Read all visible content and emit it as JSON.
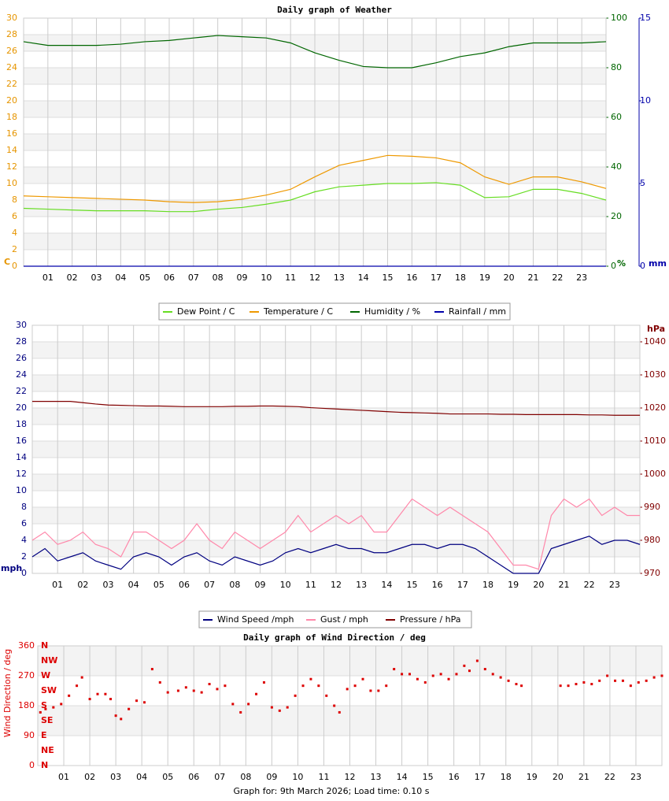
{
  "chart_data": [
    {
      "type": "line",
      "title": "Daily graph of Weather",
      "x": [
        0,
        1,
        2,
        3,
        4,
        5,
        6,
        7,
        8,
        9,
        10,
        11,
        12,
        13,
        14,
        15,
        16,
        17,
        18,
        19,
        20,
        21,
        22,
        23,
        24
      ],
      "xlim": [
        0,
        24
      ],
      "xticks": [
        {
          "value": 1,
          "label": "01"
        },
        {
          "value": 2,
          "label": "02"
        },
        {
          "value": 3,
          "label": "03"
        },
        {
          "value": 4,
          "label": "04"
        },
        {
          "value": 5,
          "label": "05"
        },
        {
          "value": 6,
          "label": "06"
        },
        {
          "value": 7,
          "label": "07"
        },
        {
          "value": 8,
          "label": "08"
        },
        {
          "value": 9,
          "label": "09"
        },
        {
          "value": 10,
          "label": "10"
        },
        {
          "value": 11,
          "label": "11"
        },
        {
          "value": 12,
          "label": "12"
        },
        {
          "value": 13,
          "label": "13"
        },
        {
          "value": 14,
          "label": "14"
        },
        {
          "value": 15,
          "label": "15"
        },
        {
          "value": 16,
          "label": "16"
        },
        {
          "value": 17,
          "label": "17"
        },
        {
          "value": 18,
          "label": "18"
        },
        {
          "value": 19,
          "label": "19"
        },
        {
          "value": 20,
          "label": "20"
        },
        {
          "value": 21,
          "label": "21"
        },
        {
          "value": 22,
          "label": "22"
        },
        {
          "value": 23,
          "label": "23"
        }
      ],
      "y_label": "C",
      "ylim": [
        0,
        30
      ],
      "yticks": [
        0,
        2,
        4,
        6,
        8,
        10,
        12,
        14,
        16,
        18,
        20,
        22,
        24,
        26,
        28,
        30
      ],
      "y2_label": "%",
      "y2lim": [
        0,
        100
      ],
      "y2ticks": [
        0,
        20,
        40,
        60,
        80,
        100
      ],
      "y3_label": "mm",
      "y3lim": [
        0,
        15
      ],
      "y3ticks": [
        0,
        5,
        10,
        15
      ],
      "grid": true,
      "series": [
        {
          "name": "Dew Point / C",
          "color": "#66dd22",
          "values": [
            7.0,
            6.9,
            6.8,
            6.7,
            6.7,
            6.7,
            6.6,
            6.6,
            6.9,
            7.1,
            7.5,
            8.0,
            9.0,
            9.6,
            9.8,
            10.0,
            10.0,
            10.1,
            9.8,
            8.3,
            8.4,
            9.3,
            9.3,
            8.8,
            8.0
          ]
        },
        {
          "name": "Temperature / C",
          "color": "#ee9900",
          "values": [
            8.5,
            8.4,
            8.3,
            8.2,
            8.1,
            8.0,
            7.8,
            7.7,
            7.8,
            8.1,
            8.6,
            9.3,
            10.8,
            12.2,
            12.8,
            13.4,
            13.3,
            13.1,
            12.5,
            10.8,
            9.9,
            10.8,
            10.8,
            10.2,
            9.4
          ]
        },
        {
          "name": "Humidity / %",
          "color": "#006600",
          "axis": "y2",
          "values": [
            90.5,
            89,
            89,
            89,
            89.5,
            90.5,
            91,
            92,
            93,
            92.5,
            92,
            90,
            86,
            83,
            80.5,
            80,
            80,
            82,
            84.5,
            86,
            88.5,
            90,
            90,
            90,
            90.5
          ]
        },
        {
          "name": "Rainfall / mm",
          "color": "#0000aa",
          "axis": "y3",
          "values": [
            0,
            0,
            0,
            0,
            0,
            0,
            0,
            0,
            0,
            0,
            0,
            0,
            0,
            0,
            0,
            0,
            0,
            0,
            0,
            0,
            0,
            0,
            0,
            0,
            0
          ]
        }
      ]
    },
    {
      "type": "line",
      "x": [
        0,
        0.5,
        1,
        1.5,
        2,
        2.5,
        3,
        3.5,
        4,
        4.5,
        5,
        5.5,
        6,
        6.5,
        7,
        7.5,
        8,
        8.5,
        9,
        9.5,
        10,
        10.5,
        11,
        11.5,
        12,
        12.5,
        13,
        13.5,
        14,
        14.5,
        15,
        15.5,
        16,
        16.5,
        17,
        17.5,
        18,
        18.5,
        19,
        19.5,
        20,
        20.5,
        21,
        21.5,
        22,
        22.5,
        23,
        23.5,
        24
      ],
      "xlim": [
        0,
        24
      ],
      "xticks": [
        {
          "value": 1,
          "label": "01"
        },
        {
          "value": 2,
          "label": "02"
        },
        {
          "value": 3,
          "label": "03"
        },
        {
          "value": 4,
          "label": "04"
        },
        {
          "value": 5,
          "label": "05"
        },
        {
          "value": 6,
          "label": "06"
        },
        {
          "value": 7,
          "label": "07"
        },
        {
          "value": 8,
          "label": "08"
        },
        {
          "value": 9,
          "label": "09"
        },
        {
          "value": 10,
          "label": "10"
        },
        {
          "value": 11,
          "label": "11"
        },
        {
          "value": 12,
          "label": "12"
        },
        {
          "value": 13,
          "label": "13"
        },
        {
          "value": 14,
          "label": "14"
        },
        {
          "value": 15,
          "label": "15"
        },
        {
          "value": 16,
          "label": "16"
        },
        {
          "value": 17,
          "label": "17"
        },
        {
          "value": 18,
          "label": "18"
        },
        {
          "value": 19,
          "label": "19"
        },
        {
          "value": 20,
          "label": "20"
        },
        {
          "value": 21,
          "label": "21"
        },
        {
          "value": 22,
          "label": "22"
        },
        {
          "value": 23,
          "label": "23"
        }
      ],
      "y_label": "mph",
      "ylim": [
        0,
        30
      ],
      "yticks": [
        0,
        2,
        4,
        6,
        8,
        10,
        12,
        14,
        16,
        18,
        20,
        22,
        24,
        26,
        28,
        30
      ],
      "y2_label": "hPa",
      "y2lim": [
        970,
        1045
      ],
      "y2ticks": [
        970,
        980,
        990,
        1000,
        1010,
        1020,
        1030,
        1040
      ],
      "grid": true,
      "series": [
        {
          "name": "Wind Speed /mph",
          "color": "#000080",
          "values": [
            2,
            3,
            1.5,
            2,
            2.5,
            1.5,
            1,
            0.5,
            2,
            2.5,
            2,
            1,
            2,
            2.5,
            1.5,
            1,
            2,
            1.5,
            1,
            1.5,
            2.5,
            3,
            2.5,
            3,
            3.5,
            3,
            3,
            2.5,
            2.5,
            3,
            3.5,
            3.5,
            3,
            3.5,
            3.5,
            3,
            2,
            1,
            0,
            0,
            0,
            3,
            3.5,
            4,
            4.5,
            3.5,
            4,
            4,
            3.5
          ]
        },
        {
          "name": "Gust / mph",
          "color": "#ff88aa",
          "values": [
            4,
            5,
            3.5,
            4,
            5,
            3.5,
            3,
            2,
            5,
            5,
            4,
            3,
            4,
            6,
            4,
            3,
            5,
            4,
            3,
            4,
            5,
            7,
            5,
            6,
            7,
            6,
            7,
            5,
            5,
            7,
            9,
            8,
            7,
            8,
            7,
            6,
            5,
            3,
            1,
            1,
            0.5,
            7,
            9,
            8,
            9,
            7,
            8,
            7,
            7
          ]
        },
        {
          "name": "Pressure / hPa",
          "color": "#800000",
          "axis": "y2",
          "values": [
            1022,
            1022,
            1022,
            1022,
            1021.6,
            1021.2,
            1020.9,
            1020.8,
            1020.7,
            1020.6,
            1020.6,
            1020.5,
            1020.4,
            1020.4,
            1020.4,
            1020.4,
            1020.5,
            1020.5,
            1020.6,
            1020.6,
            1020.5,
            1020.4,
            1020.1,
            1019.9,
            1019.7,
            1019.5,
            1019.3,
            1019.1,
            1018.9,
            1018.7,
            1018.6,
            1018.5,
            1018.4,
            1018.2,
            1018.2,
            1018.2,
            1018.2,
            1018.1,
            1018.1,
            1018,
            1018,
            1018,
            1018,
            1018,
            1017.9,
            1017.9,
            1017.8,
            1017.8,
            1017.8
          ]
        }
      ]
    },
    {
      "type": "scatter",
      "title": "Daily graph of Wind Direction / deg",
      "color": "#dd0000",
      "x": [
        0.1,
        0.3,
        0.6,
        0.9,
        1.2,
        1.5,
        1.7,
        2.0,
        2.3,
        2.6,
        2.8,
        3.0,
        3.2,
        3.5,
        3.8,
        4.1,
        4.4,
        4.7,
        5.0,
        5.4,
        5.7,
        6.0,
        6.3,
        6.6,
        6.9,
        7.2,
        7.5,
        7.8,
        8.1,
        8.4,
        8.7,
        9.0,
        9.3,
        9.6,
        9.9,
        10.2,
        10.5,
        10.8,
        11.1,
        11.4,
        11.6,
        11.9,
        12.2,
        12.5,
        12.8,
        13.1,
        13.4,
        13.7,
        14.0,
        14.3,
        14.6,
        14.9,
        15.2,
        15.5,
        15.8,
        16.1,
        16.4,
        16.6,
        16.9,
        17.2,
        17.5,
        17.8,
        18.1,
        18.4,
        18.6,
        20.1,
        20.4,
        20.7,
        21.0,
        21.3,
        21.6,
        21.9,
        22.2,
        22.5,
        22.8,
        23.1,
        23.4,
        23.7,
        24.0
      ],
      "values": [
        160,
        170,
        175,
        185,
        210,
        240,
        265,
        200,
        215,
        215,
        200,
        150,
        140,
        170,
        195,
        190,
        290,
        250,
        220,
        225,
        235,
        225,
        220,
        245,
        230,
        240,
        185,
        160,
        185,
        215,
        250,
        175,
        165,
        175,
        210,
        240,
        260,
        240,
        210,
        180,
        160,
        230,
        240,
        260,
        225,
        225,
        240,
        290,
        275,
        275,
        260,
        250,
        270,
        275,
        260,
        275,
        300,
        285,
        315,
        290,
        275,
        265,
        255,
        245,
        240,
        240,
        240,
        245,
        250,
        245,
        255,
        270,
        255,
        255,
        240,
        250,
        255,
        265,
        270
      ],
      "xlim": [
        0,
        24
      ],
      "xticks": [
        {
          "value": 1,
          "label": "01"
        },
        {
          "value": 2,
          "label": "02"
        },
        {
          "value": 3,
          "label": "03"
        },
        {
          "value": 4,
          "label": "04"
        },
        {
          "value": 5,
          "label": "05"
        },
        {
          "value": 6,
          "label": "06"
        },
        {
          "value": 7,
          "label": "07"
        },
        {
          "value": 8,
          "label": "08"
        },
        {
          "value": 9,
          "label": "09"
        },
        {
          "value": 10,
          "label": "10"
        },
        {
          "value": 11,
          "label": "11"
        },
        {
          "value": 12,
          "label": "12"
        },
        {
          "value": 13,
          "label": "13"
        },
        {
          "value": 14,
          "label": "14"
        },
        {
          "value": 15,
          "label": "15"
        },
        {
          "value": 16,
          "label": "16"
        },
        {
          "value": 17,
          "label": "17"
        },
        {
          "value": 18,
          "label": "18"
        },
        {
          "value": 19,
          "label": "19"
        },
        {
          "value": 20,
          "label": "20"
        },
        {
          "value": 21,
          "label": "21"
        },
        {
          "value": 22,
          "label": "22"
        },
        {
          "value": 23,
          "label": "23"
        }
      ],
      "y_label": "Wind Direction / deg",
      "ylim": [
        0,
        360
      ],
      "yticks": [
        0,
        90,
        180,
        270,
        360
      ],
      "compass_ticks": [
        {
          "value": 360,
          "label": "N"
        },
        {
          "value": 315,
          "label": "NW"
        },
        {
          "value": 270,
          "label": "W"
        },
        {
          "value": 225,
          "label": "SW"
        },
        {
          "value": 180,
          "label": "S"
        },
        {
          "value": 135,
          "label": "SE"
        },
        {
          "value": 90,
          "label": "E"
        },
        {
          "value": 45,
          "label": "NE"
        },
        {
          "value": 0,
          "label": "N"
        }
      ],
      "grid": true
    }
  ],
  "footer": "Graph for: 9th March 2026; Load time: 0.10 s"
}
